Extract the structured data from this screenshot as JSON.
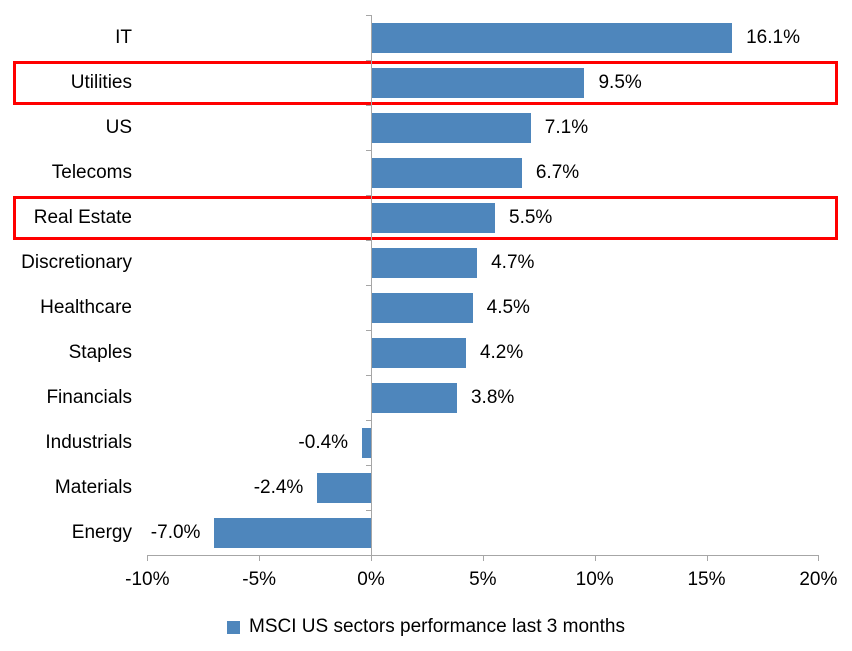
{
  "chart_data": {
    "type": "bar",
    "orientation": "horizontal",
    "title": "",
    "categories": [
      "IT",
      "Utilities",
      "US",
      "Telecoms",
      "Real Estate",
      "Discretionary",
      "Healthcare",
      "Staples",
      "Financials",
      "Industrials",
      "Materials",
      "Energy"
    ],
    "series": [
      {
        "name": "MSCI US sectors performance last 3 months",
        "values": [
          16.1,
          9.5,
          7.1,
          6.7,
          5.5,
          4.7,
          4.5,
          4.2,
          3.8,
          -0.4,
          -2.4,
          -7.0
        ]
      }
    ],
    "data_labels": [
      "16.1%",
      "9.5%",
      "7.1%",
      "6.7%",
      "5.5%",
      "4.7%",
      "4.5%",
      "4.2%",
      "3.8%",
      "-0.4%",
      "-2.4%",
      "-7.0%"
    ],
    "highlighted_categories": [
      "Utilities",
      "Real Estate"
    ],
    "x_axis": {
      "tick_labels": [
        "-10%",
        "-5%",
        "0%",
        "5%",
        "10%",
        "15%",
        "20%"
      ],
      "tick_values": [
        -10,
        -5,
        0,
        5,
        10,
        15,
        20
      ],
      "range": [
        -10,
        20
      ]
    },
    "ylabel": "",
    "xlabel": "",
    "grid": false,
    "legend": {
      "label": "MSCI US sectors performance last 3 months",
      "position": "bottom-center"
    },
    "colors": {
      "bar": "#4E86BC",
      "highlight_box": "#FF0000",
      "axis": "#A6A6A6",
      "text": "#000000",
      "background": "#FFFFFF"
    }
  }
}
